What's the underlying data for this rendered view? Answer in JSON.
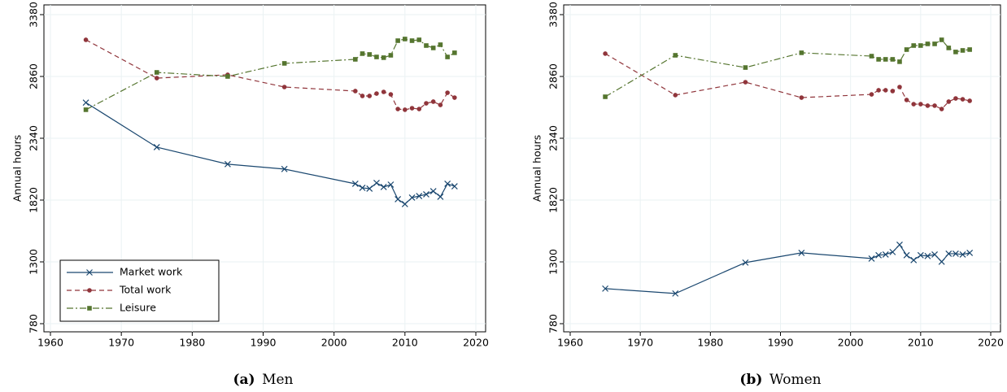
{
  "chart_data": [
    {
      "type": "line",
      "caption_label": "(a)",
      "caption": "Men",
      "ylabel": "Annual hours",
      "x": [
        1965,
        1975,
        1985,
        1993,
        2003,
        2004,
        2005,
        2006,
        2007,
        2008,
        2009,
        2010,
        2011,
        2012,
        2013,
        2014,
        2015,
        2016,
        2017
      ],
      "series": [
        {
          "name": "Market work",
          "color": "#1a476f",
          "marker": "x",
          "linestyle": "solid",
          "values": [
            2640,
            2265,
            2122,
            2081,
            1957,
            1923,
            1916,
            1964,
            1930,
            1950,
            1827,
            1786,
            1841,
            1854,
            1868,
            1895,
            1848,
            1957,
            1936
          ]
        },
        {
          "name": "Total work",
          "color": "#90353b",
          "marker": "circle",
          "linestyle": "dashed",
          "values": [
            3168,
            2846,
            2874,
            2771,
            2737,
            2696,
            2696,
            2716,
            2730,
            2709,
            2586,
            2580,
            2593,
            2586,
            2634,
            2648,
            2620,
            2723,
            2682
          ]
        },
        {
          "name": "Leisure",
          "color": "#55752f",
          "marker": "square",
          "linestyle": "dashdot",
          "values": [
            2580,
            2894,
            2860,
            2970,
            3004,
            3052,
            3045,
            3024,
            3018,
            3038,
            3161,
            3175,
            3161,
            3168,
            3120,
            3100,
            3127,
            3024,
            3059
          ]
        }
      ],
      "xlim": [
        1960,
        2020
      ],
      "xticks": [
        1960,
        1970,
        1980,
        1990,
        2000,
        2010,
        2020
      ],
      "ylim": [
        780,
        3380
      ],
      "yticks": [
        780,
        1300,
        1820,
        2340,
        2860,
        3380
      ],
      "grid": true,
      "legend": "lower left"
    },
    {
      "type": "line",
      "caption_label": "(b)",
      "caption": "Women",
      "ylabel": "Annual hours",
      "x": [
        1965,
        1975,
        1985,
        1993,
        2003,
        2004,
        2005,
        2006,
        2007,
        2008,
        2009,
        2010,
        2011,
        2012,
        2013,
        2014,
        2015,
        2016,
        2017
      ],
      "series": [
        {
          "color": "#1a476f",
          "marker": "x",
          "linestyle": "solid",
          "values": [
            1075,
            1034,
            1294,
            1376,
            1328,
            1356,
            1362,
            1383,
            1444,
            1356,
            1315,
            1356,
            1349,
            1362,
            1301,
            1369,
            1369,
            1362,
            1376
          ]
        },
        {
          "color": "#90353b",
          "marker": "circle",
          "linestyle": "dashed",
          "values": [
            3052,
            2703,
            2812,
            2682,
            2709,
            2744,
            2744,
            2737,
            2771,
            2662,
            2627,
            2627,
            2614,
            2614,
            2586,
            2648,
            2675,
            2668,
            2655
          ]
        },
        {
          "color": "#55752f",
          "marker": "square",
          "linestyle": "dashdot",
          "values": [
            2689,
            3038,
            2935,
            3059,
            3031,
            3004,
            3004,
            3004,
            2984,
            3086,
            3120,
            3120,
            3134,
            3134,
            3168,
            3100,
            3066,
            3079,
            3086
          ]
        }
      ],
      "xlim": [
        1960,
        2020
      ],
      "xticks": [
        1960,
        1970,
        1980,
        1990,
        2000,
        2010,
        2020
      ],
      "ylim": [
        780,
        3380
      ],
      "yticks": [
        780,
        1300,
        1820,
        2340,
        2860,
        3380
      ],
      "grid": true
    }
  ]
}
